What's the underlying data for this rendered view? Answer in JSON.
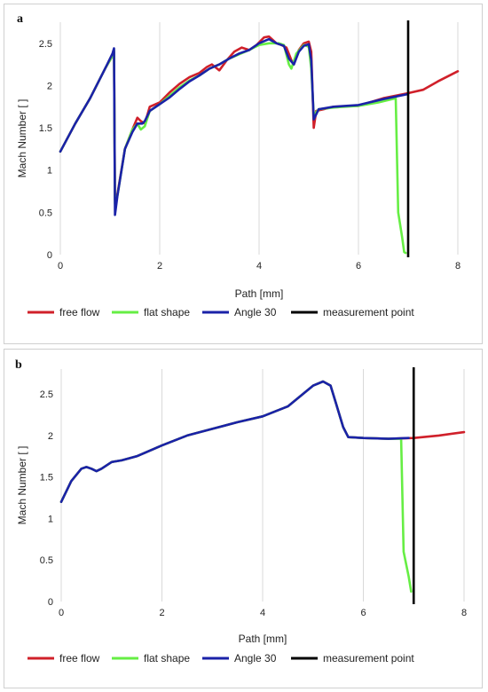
{
  "colors": {
    "free_flow": "#d0202a",
    "flat_shape": "#66ee44",
    "angle_30": "#1a22a8",
    "measurement_point": "#000000",
    "grid": "#d9d9d9"
  },
  "chart_data": [
    {
      "type": "line",
      "panel_label": "a",
      "xlabel": "Path [mm]",
      "ylabel": "Mach Number [ ]",
      "xlim": [
        0,
        8
      ],
      "ylim": [
        0,
        2.75
      ],
      "x_ticks": [
        "0",
        "2",
        "4",
        "6",
        "8"
      ],
      "y_ticks": [
        "0",
        "0.5",
        "1",
        "1.5",
        "2",
        "2.5"
      ],
      "grid": "vertical",
      "legend_position": "bottom",
      "measurement_point_x": 7.0,
      "series": [
        {
          "name": "free flow",
          "color_key": "free_flow",
          "points": [
            [
              0,
              1.22
            ],
            [
              0.3,
              1.55
            ],
            [
              0.6,
              1.85
            ],
            [
              0.9,
              2.2
            ],
            [
              1.05,
              2.35
            ],
            [
              1.08,
              2.4
            ],
            [
              1.1,
              0.65
            ],
            [
              1.15,
              0.72
            ],
            [
              1.3,
              1.25
            ],
            [
              1.45,
              1.48
            ],
            [
              1.55,
              1.62
            ],
            [
              1.62,
              1.58
            ],
            [
              1.7,
              1.55
            ],
            [
              1.8,
              1.75
            ],
            [
              2.0,
              1.8
            ],
            [
              2.2,
              1.92
            ],
            [
              2.4,
              2.02
            ],
            [
              2.6,
              2.1
            ],
            [
              2.8,
              2.15
            ],
            [
              2.95,
              2.22
            ],
            [
              3.05,
              2.25
            ],
            [
              3.2,
              2.18
            ],
            [
              3.35,
              2.3
            ],
            [
              3.5,
              2.4
            ],
            [
              3.65,
              2.45
            ],
            [
              3.8,
              2.42
            ],
            [
              3.95,
              2.48
            ],
            [
              4.1,
              2.57
            ],
            [
              4.2,
              2.58
            ],
            [
              4.35,
              2.5
            ],
            [
              4.45,
              2.48
            ],
            [
              4.55,
              2.45
            ],
            [
              4.65,
              2.3
            ],
            [
              4.7,
              2.25
            ],
            [
              4.8,
              2.42
            ],
            [
              4.9,
              2.5
            ],
            [
              5.0,
              2.52
            ],
            [
              5.05,
              2.4
            ],
            [
              5.1,
              1.5
            ],
            [
              5.15,
              1.7
            ],
            [
              5.3,
              1.72
            ],
            [
              5.5,
              1.75
            ],
            [
              6.0,
              1.76
            ],
            [
              6.5,
              1.85
            ],
            [
              7.0,
              1.91
            ],
            [
              7.3,
              1.95
            ],
            [
              7.6,
              2.05
            ],
            [
              8.0,
              2.17
            ]
          ]
        },
        {
          "name": "flat shape",
          "color_key": "flat_shape",
          "points": [
            [
              0,
              1.22
            ],
            [
              0.3,
              1.55
            ],
            [
              0.6,
              1.85
            ],
            [
              0.9,
              2.2
            ],
            [
              1.05,
              2.35
            ],
            [
              1.08,
              2.42
            ],
            [
              1.1,
              0.6
            ],
            [
              1.15,
              0.7
            ],
            [
              1.3,
              1.25
            ],
            [
              1.45,
              1.48
            ],
            [
              1.55,
              1.55
            ],
            [
              1.62,
              1.48
            ],
            [
              1.7,
              1.52
            ],
            [
              1.8,
              1.7
            ],
            [
              2.0,
              1.78
            ],
            [
              2.2,
              1.88
            ],
            [
              2.4,
              1.98
            ],
            [
              2.6,
              2.06
            ],
            [
              2.8,
              2.12
            ],
            [
              3.0,
              2.2
            ],
            [
              3.2,
              2.25
            ],
            [
              3.4,
              2.32
            ],
            [
              3.6,
              2.37
            ],
            [
              3.8,
              2.42
            ],
            [
              4.0,
              2.48
            ],
            [
              4.2,
              2.5
            ],
            [
              4.4,
              2.5
            ],
            [
              4.5,
              2.48
            ],
            [
              4.6,
              2.25
            ],
            [
              4.65,
              2.2
            ],
            [
              4.75,
              2.38
            ],
            [
              4.9,
              2.48
            ],
            [
              5.0,
              2.46
            ],
            [
              5.05,
              2.2
            ],
            [
              5.1,
              1.65
            ],
            [
              5.2,
              1.72
            ],
            [
              5.5,
              1.74
            ],
            [
              6.0,
              1.76
            ],
            [
              6.4,
              1.8
            ],
            [
              6.75,
              1.85
            ],
            [
              6.8,
              0.5
            ],
            [
              6.88,
              0.2
            ],
            [
              6.92,
              0.03
            ],
            [
              6.95,
              0.02
            ]
          ]
        },
        {
          "name": "Angle 30",
          "color_key": "angle_30",
          "points": [
            [
              0,
              1.22
            ],
            [
              0.3,
              1.55
            ],
            [
              0.6,
              1.85
            ],
            [
              0.9,
              2.2
            ],
            [
              1.05,
              2.38
            ],
            [
              1.08,
              2.44
            ],
            [
              1.1,
              0.47
            ],
            [
              1.15,
              0.7
            ],
            [
              1.3,
              1.25
            ],
            [
              1.45,
              1.45
            ],
            [
              1.55,
              1.55
            ],
            [
              1.65,
              1.55
            ],
            [
              1.7,
              1.58
            ],
            [
              1.8,
              1.7
            ],
            [
              2.0,
              1.78
            ],
            [
              2.2,
              1.86
            ],
            [
              2.4,
              1.96
            ],
            [
              2.6,
              2.05
            ],
            [
              2.8,
              2.12
            ],
            [
              3.0,
              2.2
            ],
            [
              3.2,
              2.25
            ],
            [
              3.4,
              2.32
            ],
            [
              3.6,
              2.38
            ],
            [
              3.8,
              2.42
            ],
            [
              4.0,
              2.5
            ],
            [
              4.2,
              2.55
            ],
            [
              4.35,
              2.5
            ],
            [
              4.5,
              2.47
            ],
            [
              4.6,
              2.32
            ],
            [
              4.7,
              2.25
            ],
            [
              4.8,
              2.4
            ],
            [
              4.9,
              2.47
            ],
            [
              5.0,
              2.49
            ],
            [
              5.05,
              2.3
            ],
            [
              5.1,
              1.6
            ],
            [
              5.2,
              1.72
            ],
            [
              5.5,
              1.75
            ],
            [
              6.0,
              1.77
            ],
            [
              6.5,
              1.84
            ],
            [
              7.0,
              1.9
            ]
          ]
        }
      ]
    },
    {
      "type": "line",
      "panel_label": "b",
      "xlabel": "Path [mm]",
      "ylabel": "Mach Number [ ]",
      "xlim": [
        0,
        8
      ],
      "ylim": [
        0,
        2.8
      ],
      "x_ticks": [
        "0",
        "2",
        "4",
        "6",
        "8"
      ],
      "y_ticks": [
        "0",
        "0.5",
        "1",
        "1.5",
        "2",
        "2.5"
      ],
      "grid": "vertical",
      "legend_position": "bottom",
      "measurement_point_x": 7.0,
      "series": [
        {
          "name": "free flow",
          "color_key": "free_flow",
          "points": [
            [
              0,
              1.2
            ],
            [
              0.2,
              1.45
            ],
            [
              0.4,
              1.6
            ],
            [
              0.5,
              1.62
            ],
            [
              0.6,
              1.6
            ],
            [
              0.7,
              1.57
            ],
            [
              0.8,
              1.6
            ],
            [
              1.0,
              1.68
            ],
            [
              1.2,
              1.7
            ],
            [
              1.5,
              1.75
            ],
            [
              2.0,
              1.88
            ],
            [
              2.5,
              2.0
            ],
            [
              3.0,
              2.08
            ],
            [
              3.5,
              2.16
            ],
            [
              4.0,
              2.23
            ],
            [
              4.5,
              2.35
            ],
            [
              4.8,
              2.5
            ],
            [
              5.0,
              2.6
            ],
            [
              5.2,
              2.65
            ],
            [
              5.35,
              2.6
            ],
            [
              5.45,
              2.4
            ],
            [
              5.6,
              2.1
            ],
            [
              5.7,
              1.98
            ],
            [
              6.0,
              1.97
            ],
            [
              6.5,
              1.96
            ],
            [
              7.0,
              1.97
            ],
            [
              7.5,
              2.0
            ],
            [
              8.0,
              2.04
            ]
          ]
        },
        {
          "name": "flat shape",
          "color_key": "flat_shape",
          "points": [
            [
              0,
              1.2
            ],
            [
              0.2,
              1.45
            ],
            [
              0.4,
              1.6
            ],
            [
              0.5,
              1.62
            ],
            [
              0.6,
              1.6
            ],
            [
              0.7,
              1.57
            ],
            [
              0.8,
              1.6
            ],
            [
              1.0,
              1.68
            ],
            [
              1.2,
              1.7
            ],
            [
              1.5,
              1.75
            ],
            [
              2.0,
              1.88
            ],
            [
              2.5,
              2.0
            ],
            [
              3.0,
              2.08
            ],
            [
              3.5,
              2.16
            ],
            [
              4.0,
              2.23
            ],
            [
              4.5,
              2.35
            ],
            [
              4.8,
              2.5
            ],
            [
              5.0,
              2.6
            ],
            [
              5.2,
              2.65
            ],
            [
              5.35,
              2.6
            ],
            [
              5.45,
              2.4
            ],
            [
              5.6,
              2.1
            ],
            [
              5.7,
              1.98
            ],
            [
              6.0,
              1.97
            ],
            [
              6.5,
              1.96
            ],
            [
              6.75,
              1.96
            ],
            [
              6.8,
              0.6
            ],
            [
              6.9,
              0.3
            ],
            [
              6.95,
              0.12
            ]
          ]
        },
        {
          "name": "Angle 30",
          "color_key": "angle_30",
          "points": [
            [
              0,
              1.2
            ],
            [
              0.2,
              1.45
            ],
            [
              0.4,
              1.6
            ],
            [
              0.5,
              1.62
            ],
            [
              0.6,
              1.6
            ],
            [
              0.7,
              1.57
            ],
            [
              0.8,
              1.6
            ],
            [
              1.0,
              1.68
            ],
            [
              1.2,
              1.7
            ],
            [
              1.5,
              1.75
            ],
            [
              2.0,
              1.88
            ],
            [
              2.5,
              2.0
            ],
            [
              3.0,
              2.08
            ],
            [
              3.5,
              2.16
            ],
            [
              4.0,
              2.23
            ],
            [
              4.5,
              2.35
            ],
            [
              4.8,
              2.5
            ],
            [
              5.0,
              2.6
            ],
            [
              5.2,
              2.65
            ],
            [
              5.35,
              2.6
            ],
            [
              5.45,
              2.4
            ],
            [
              5.6,
              2.1
            ],
            [
              5.7,
              1.98
            ],
            [
              6.0,
              1.97
            ],
            [
              6.5,
              1.96
            ],
            [
              6.9,
              1.97
            ]
          ]
        }
      ],
      "measurement_label": "measurement point"
    }
  ],
  "legend": [
    "free flow",
    "flat shape",
    "Angle 30",
    "measurement point"
  ]
}
